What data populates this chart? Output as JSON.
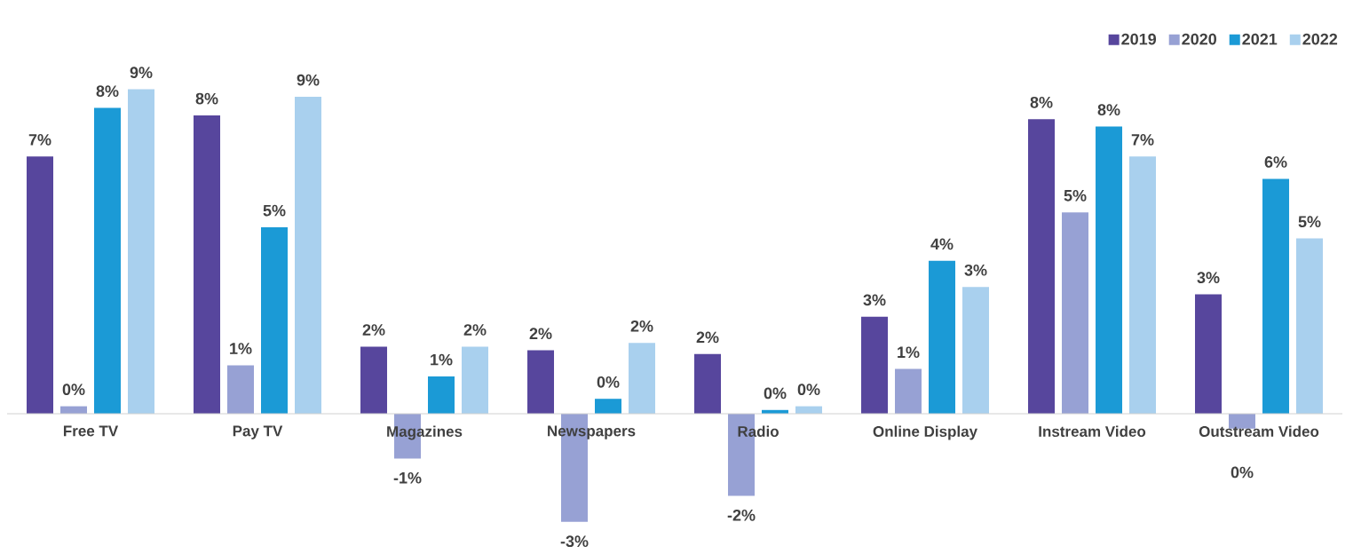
{
  "chart_data": {
    "type": "bar",
    "categories": [
      "Free TV",
      "Pay TV",
      "Magazines",
      "Newspapers",
      "Radio",
      "Online Display",
      "Instream Video",
      "Outstream Video"
    ],
    "series": [
      {
        "name": "2019",
        "color": "#57469d",
        "values": [
          6.9,
          8.0,
          1.8,
          1.7,
          1.6,
          2.6,
          7.9,
          3.2
        ],
        "value_labels": [
          "7%",
          "8%",
          "2%",
          "2%",
          "2%",
          "3%",
          "8%",
          "3%"
        ]
      },
      {
        "name": "2020",
        "color": "#97a1d4",
        "values": [
          0.2,
          1.3,
          -1.2,
          -2.9,
          -2.2,
          1.2,
          5.4,
          -0.4
        ],
        "value_labels": [
          "0%",
          "1%",
          "-1%",
          "-3%",
          "-2%",
          "1%",
          "5%",
          "0%"
        ]
      },
      {
        "name": "2021",
        "color": "#1b9ad6",
        "values": [
          8.2,
          5.0,
          1.0,
          0.4,
          0.1,
          4.1,
          7.7,
          6.3
        ],
        "value_labels": [
          "8%",
          "5%",
          "1%",
          "0%",
          "0%",
          "4%",
          "8%",
          "6%"
        ]
      },
      {
        "name": "2022",
        "color": "#a9d0ee",
        "values": [
          8.7,
          8.5,
          1.8,
          1.9,
          0.2,
          3.4,
          6.9,
          4.7
        ],
        "value_labels": [
          "9%",
          "9%",
          "2%",
          "2%",
          "0%",
          "3%",
          "7%",
          "5%"
        ]
      }
    ],
    "legend": "top right"
  }
}
